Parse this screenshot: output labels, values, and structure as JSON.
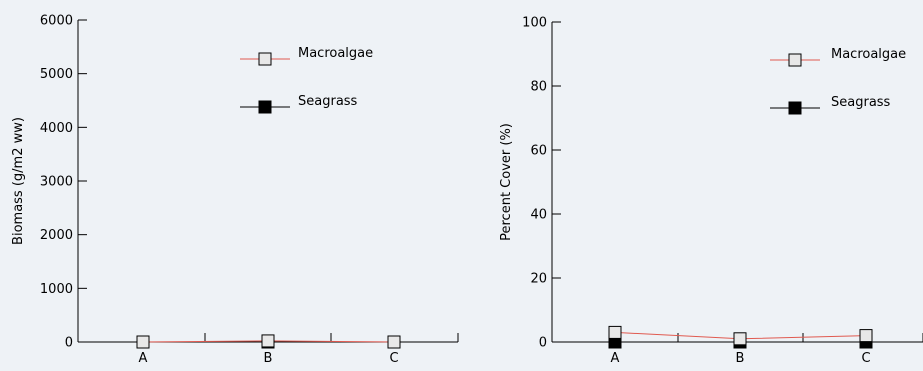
{
  "colors": {
    "background": "#eef2f6",
    "macroalgae_line": "#e05a50",
    "macroalgae_marker": "#e8e8e8",
    "seagrass_line": "#000000",
    "seagrass_marker": "#000000"
  },
  "chart_data": [
    {
      "type": "line",
      "title": "",
      "xlabel": "",
      "ylabel": "Biomass (g/m2 ww)",
      "categories": [
        "A",
        "B",
        "C"
      ],
      "ylim": [
        0,
        6000
      ],
      "yticks": [
        "0",
        "1000",
        "2000",
        "3000",
        "4000",
        "5000",
        "6000"
      ],
      "series": [
        {
          "name": "Macroalgae",
          "values": [
            0,
            20,
            0
          ],
          "marker": "open-square"
        },
        {
          "name": "Seagrass",
          "values": [
            0,
            0,
            0
          ],
          "marker": "filled-square"
        }
      ],
      "legend": "top-center"
    },
    {
      "type": "line",
      "title": "",
      "xlabel": "",
      "ylabel": "Percent Cover (%)",
      "categories": [
        "A",
        "B",
        "C"
      ],
      "ylim": [
        0,
        100
      ],
      "yticks": [
        "0",
        "20",
        "40",
        "60",
        "80",
        "100"
      ],
      "series": [
        {
          "name": "Macroalgae",
          "values": [
            3,
            1,
            2
          ],
          "marker": "open-square"
        },
        {
          "name": "Seagrass",
          "values": [
            0,
            0,
            0
          ],
          "marker": "filled-square"
        }
      ],
      "legend": "top-right"
    }
  ]
}
